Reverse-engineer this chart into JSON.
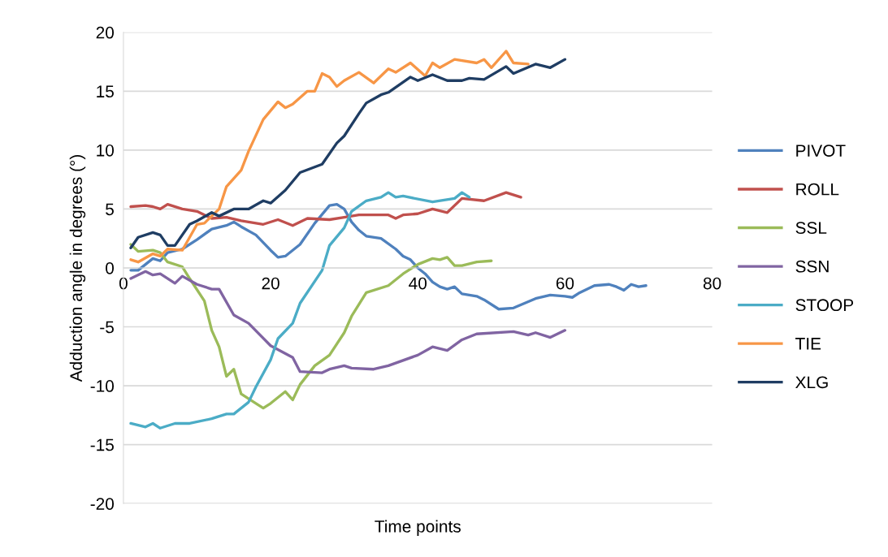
{
  "chart_data": {
    "type": "line",
    "xlabel": "Time points",
    "ylabel": "Adduction angle in degrees (°)",
    "xlim": [
      0,
      80
    ],
    "xticks": [
      0,
      20,
      40,
      60,
      80
    ],
    "ylim": [
      -20,
      20
    ],
    "yticks": [
      -20,
      -15,
      -10,
      -5,
      0,
      5,
      10,
      15,
      20
    ],
    "grid": "y",
    "legend": "right",
    "marker": "none",
    "line_style": "solid",
    "series": [
      {
        "name": "PIVOT",
        "color": "#4f81bd",
        "x": [
          1,
          2,
          3,
          4,
          5,
          6,
          8,
          10,
          12,
          14,
          15,
          16,
          18,
          20,
          21,
          22,
          24,
          26,
          28,
          29,
          30,
          31,
          32,
          33,
          35,
          37,
          38,
          39,
          40,
          41,
          42,
          43,
          44,
          45,
          46,
          48,
          49,
          51,
          53,
          56,
          58,
          60,
          61,
          62,
          64,
          66,
          67,
          68,
          69,
          70,
          71
        ],
        "values": [
          -0.2,
          -0.2,
          0.3,
          0.8,
          0.6,
          1.3,
          1.6,
          2.4,
          3.3,
          3.6,
          3.9,
          3.5,
          2.8,
          1.5,
          0.9,
          1.0,
          2.0,
          3.8,
          5.3,
          5.4,
          5.0,
          3.9,
          3.2,
          2.7,
          2.5,
          1.6,
          1.0,
          0.7,
          0,
          -0.5,
          -1.2,
          -1.6,
          -1.8,
          -1.6,
          -2.2,
          -2.4,
          -2.7,
          -3.5,
          -3.4,
          -2.6,
          -2.3,
          -2.4,
          -2.5,
          -2.1,
          -1.5,
          -1.4,
          -1.6,
          -1.9,
          -1.4,
          -1.6,
          -1.5
        ]
      },
      {
        "name": "ROLL",
        "color": "#c0504d",
        "x": [
          1,
          3,
          4,
          5,
          6,
          8,
          10,
          12,
          14,
          16,
          19,
          21,
          23,
          25,
          28,
          30,
          32,
          36,
          37,
          38,
          40,
          42,
          44,
          46,
          49,
          52,
          54
        ],
        "values": [
          5.2,
          5.3,
          5.2,
          5.0,
          5.4,
          5.0,
          4.8,
          4.2,
          4.3,
          4.0,
          3.7,
          4.1,
          3.6,
          4.2,
          4.1,
          4.3,
          4.5,
          4.5,
          4.2,
          4.5,
          4.6,
          5.0,
          4.7,
          5.9,
          5.7,
          6.4,
          6.0
        ]
      },
      {
        "name": "SSL",
        "color": "#9bbb59",
        "x": [
          1,
          2,
          4,
          5,
          6,
          8,
          9,
          11,
          12,
          13,
          14,
          15,
          16,
          18,
          19,
          20,
          22,
          23,
          24,
          26,
          28,
          30,
          31,
          33,
          36,
          38,
          40,
          42,
          43,
          44,
          45,
          46,
          48,
          50
        ],
        "values": [
          2.0,
          1.4,
          1.5,
          1.3,
          0.5,
          0.1,
          -0.9,
          -2.8,
          -5.3,
          -6.7,
          -9.2,
          -8.6,
          -10.7,
          -11.5,
          -11.9,
          -11.5,
          -10.5,
          -11.2,
          -9.9,
          -8.3,
          -7.4,
          -5.5,
          -4.1,
          -2.1,
          -1.5,
          -0.5,
          0.3,
          0.8,
          0.7,
          0.9,
          0.2,
          0.2,
          0.5,
          0.6
        ]
      },
      {
        "name": "SSN",
        "color": "#8064a2",
        "x": [
          1,
          3,
          4,
          5,
          7,
          8,
          10,
          12,
          13,
          15,
          17,
          20,
          23,
          24,
          27,
          28,
          30,
          31,
          34,
          36,
          40,
          42,
          44,
          46,
          48,
          53,
          55,
          56,
          58,
          60
        ],
        "values": [
          -0.9,
          -0.3,
          -0.6,
          -0.5,
          -1.3,
          -0.7,
          -1.4,
          -1.8,
          -1.8,
          -4.0,
          -4.7,
          -6.6,
          -7.6,
          -8.8,
          -8.9,
          -8.6,
          -8.3,
          -8.5,
          -8.6,
          -8.3,
          -7.4,
          -6.7,
          -7.0,
          -6.1,
          -5.6,
          -5.4,
          -5.7,
          -5.5,
          -5.9,
          -5.3
        ]
      },
      {
        "name": "STOOP",
        "color": "#4bacc6",
        "x": [
          1,
          3,
          4,
          5,
          7,
          9,
          12,
          14,
          15,
          17,
          18,
          20,
          21,
          23,
          24,
          27,
          28,
          30,
          31,
          33,
          35,
          36,
          37,
          38,
          42,
          45,
          46,
          47
        ],
        "values": [
          -13.2,
          -13.5,
          -13.2,
          -13.6,
          -13.2,
          -13.2,
          -12.8,
          -12.4,
          -12.4,
          -11.4,
          -10.1,
          -7.8,
          -6.0,
          -4.7,
          -3.0,
          -0.2,
          1.9,
          3.4,
          4.8,
          5.7,
          6.0,
          6.4,
          6.0,
          6.1,
          5.6,
          5.9,
          6.4,
          6.0
        ]
      },
      {
        "name": "TIE",
        "color": "#f79646",
        "x": [
          1,
          2,
          4,
          5,
          6,
          8,
          10,
          11,
          13,
          14,
          16,
          17,
          19,
          21,
          22,
          23,
          25,
          26,
          27,
          28,
          29,
          30,
          32,
          34,
          36,
          37,
          39,
          41,
          42,
          43,
          45,
          48,
          49,
          50,
          52,
          53,
          55
        ],
        "values": [
          0.7,
          0.5,
          1.2,
          1.0,
          1.6,
          1.5,
          3.7,
          3.8,
          5.0,
          6.9,
          8.3,
          9.9,
          12.6,
          14.1,
          13.6,
          13.9,
          15.0,
          15.0,
          16.5,
          16.2,
          15.4,
          15.9,
          16.6,
          15.7,
          16.9,
          16.6,
          17.4,
          16.3,
          17.4,
          17.0,
          17.7,
          17.4,
          17.7,
          17.0,
          18.4,
          17.4,
          17.3
        ]
      },
      {
        "name": "XLG",
        "color": "#1f3d63",
        "x": [
          1,
          2,
          4,
          5,
          6,
          7,
          9,
          10,
          12,
          13,
          15,
          17,
          19,
          20,
          22,
          24,
          27,
          29,
          30,
          32,
          33,
          35,
          36,
          39,
          40,
          42,
          44,
          46,
          47,
          49,
          52,
          53,
          56,
          58,
          60
        ],
        "values": [
          1.7,
          2.6,
          3.0,
          2.8,
          1.9,
          1.9,
          3.7,
          4.0,
          4.7,
          4.4,
          5.0,
          5.0,
          5.7,
          5.5,
          6.6,
          8.1,
          8.8,
          10.6,
          11.2,
          13.1,
          14.0,
          14.7,
          14.9,
          16.2,
          15.9,
          16.4,
          15.9,
          15.9,
          16.1,
          16.0,
          17.1,
          16.5,
          17.3,
          17.0,
          17.7
        ]
      }
    ]
  }
}
